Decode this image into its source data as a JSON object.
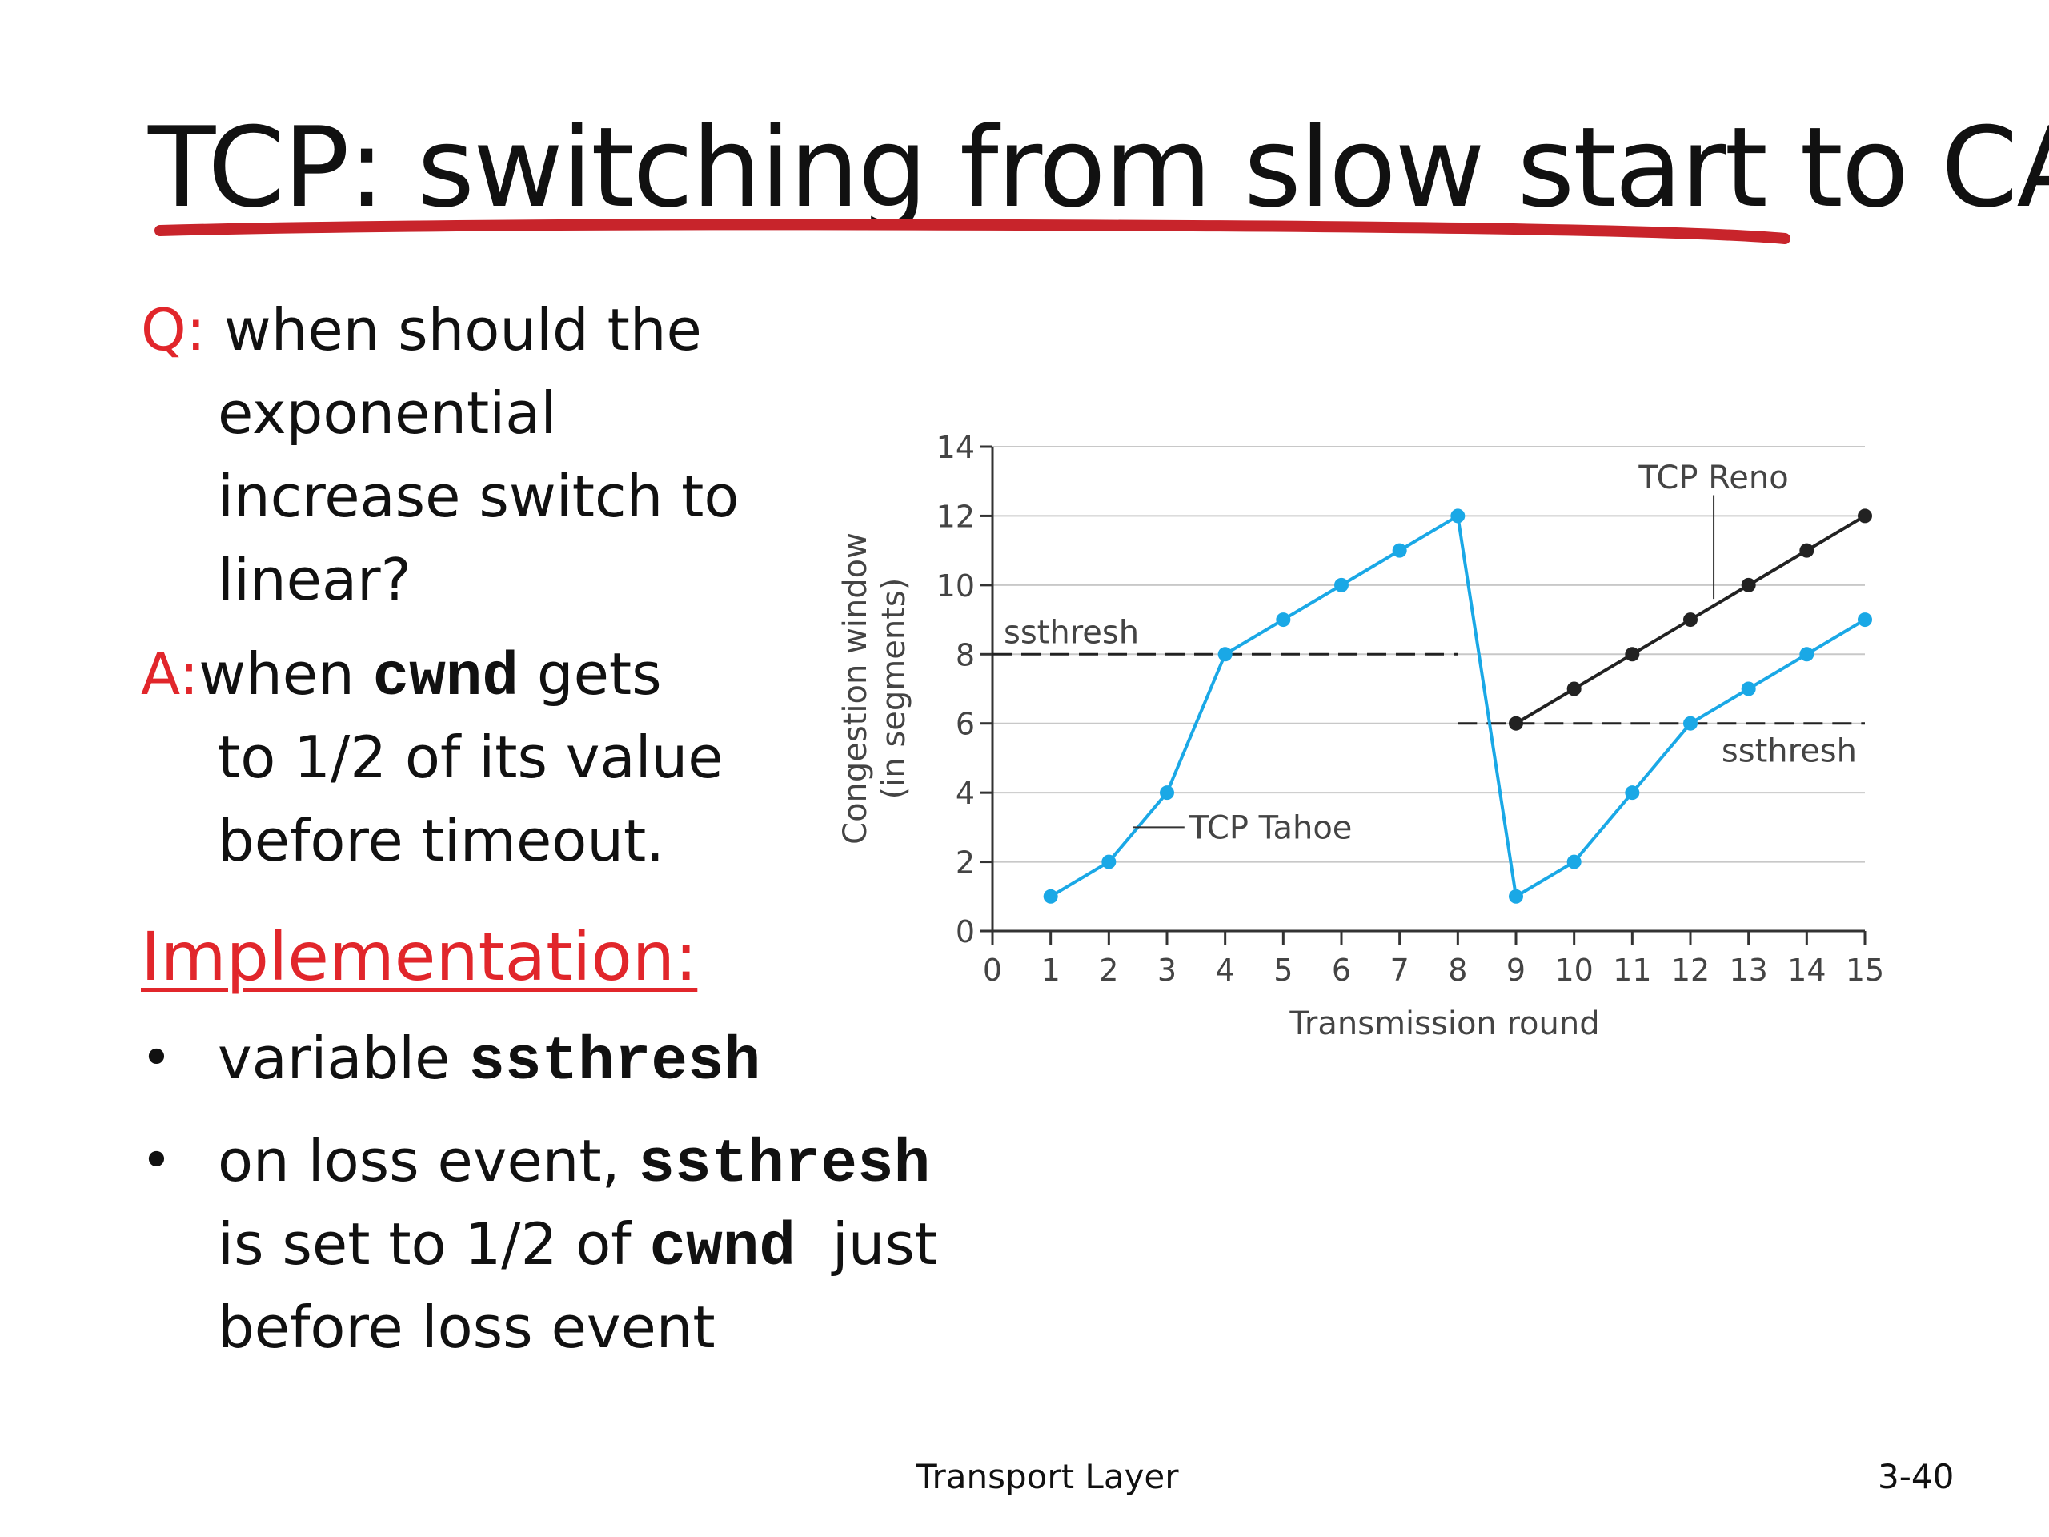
{
  "title": "TCP: switching from slow start to CA",
  "question": {
    "label": "Q:",
    "lines": [
      "when should the",
      "exponential",
      "increase switch to",
      "linear?"
    ]
  },
  "answer": {
    "label": "A:",
    "line1_pre": "when ",
    "line1_code": "cwnd",
    "line1_post": " gets",
    "lines": [
      "to 1/2 of its value",
      "before timeout."
    ]
  },
  "implementation": {
    "heading": "Implementation:",
    "bullet_char": "•",
    "b1_pre": "variable ",
    "b1_code": "ssthresh",
    "b2_l1_pre": "on loss event, ",
    "b2_l1_code": "ssthresh",
    "b2_l2_pre": "is set to 1/2 of ",
    "b2_l2_code": "cwnd",
    "b2_l2_post": "  just",
    "b2_l3": "before loss event"
  },
  "footer": {
    "center": "Transport Layer",
    "page": "3-40"
  },
  "colors": {
    "title_underline": "#c8242b",
    "accent_red": "#e1262b",
    "tahoe": "#1aa8e6",
    "reno": "#222222"
  },
  "chart_data": {
    "type": "line",
    "xlabel": "Transmission round",
    "ylabel_line1": "Congestion window",
    "ylabel_line2": "(in segments)",
    "xlim": [
      0,
      15
    ],
    "ylim": [
      0,
      14
    ],
    "xticks": [
      0,
      1,
      2,
      3,
      4,
      5,
      6,
      7,
      8,
      9,
      10,
      11,
      12,
      13,
      14,
      15
    ],
    "yticks": [
      0,
      2,
      4,
      6,
      8,
      10,
      12,
      14
    ],
    "grid": "horizontal",
    "series": [
      {
        "name": "TCP Tahoe",
        "color": "#1aa8e6",
        "x": [
          1,
          2,
          3,
          4,
          5,
          6,
          7,
          8,
          9,
          10,
          11,
          12,
          13,
          14,
          15
        ],
        "y": [
          1,
          2,
          4,
          8,
          9,
          10,
          11,
          12,
          1,
          2,
          4,
          6,
          7,
          8,
          9
        ]
      },
      {
        "name": "TCP Reno",
        "color": "#222222",
        "x": [
          9,
          10,
          11,
          12,
          13,
          14,
          15
        ],
        "y": [
          6,
          7,
          8,
          9,
          10,
          11,
          12
        ]
      }
    ],
    "thresholds": [
      {
        "label": "ssthresh",
        "y": 8,
        "x_start": 0,
        "x_end": 8
      },
      {
        "label": "ssthresh",
        "y": 6,
        "x_start": 8,
        "x_end": 15
      }
    ]
  }
}
